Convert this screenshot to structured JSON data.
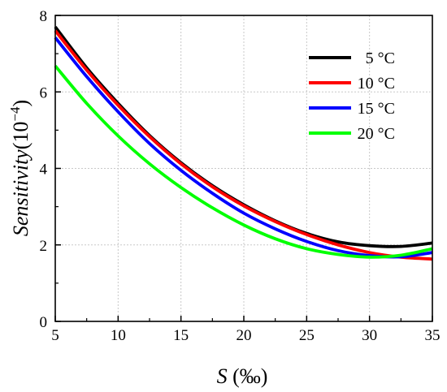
{
  "chart_data": {
    "type": "line",
    "xlabel": {
      "var": "S",
      "unit": " (‰)"
    },
    "ylabel": {
      "var": "Sensitivity",
      "unit": "(10",
      "exp": "−4",
      "close": ")"
    },
    "xlim": [
      5,
      35
    ],
    "ylim": [
      0,
      8
    ],
    "xticks": [
      5,
      10,
      15,
      20,
      25,
      30,
      35
    ],
    "yticks": [
      0,
      2,
      4,
      6,
      8
    ],
    "grid": true,
    "legend_position": "top-right",
    "x": [
      5,
      7.5,
      10,
      12.5,
      15,
      17.5,
      20,
      22.5,
      25,
      27.5,
      30,
      32.5,
      35
    ],
    "series": [
      {
        "name": "5 °C",
        "color": "#000000",
        "values": [
          7.7,
          6.63,
          5.7,
          4.86,
          4.15,
          3.55,
          3.05,
          2.63,
          2.3,
          2.08,
          1.98,
          1.96,
          2.05
        ]
      },
      {
        "name": "10 °C",
        "color": "#ff0000",
        "values": [
          7.6,
          6.57,
          5.65,
          4.83,
          4.12,
          3.52,
          3.02,
          2.61,
          2.27,
          2.0,
          1.8,
          1.68,
          1.63
        ]
      },
      {
        "name": "15 °C",
        "color": "#0000ff",
        "values": [
          7.42,
          6.4,
          5.48,
          4.65,
          3.95,
          3.35,
          2.83,
          2.42,
          2.09,
          1.85,
          1.72,
          1.69,
          1.8
        ]
      },
      {
        "name": "20 °C",
        "color": "#00ff00",
        "values": [
          6.68,
          5.7,
          4.85,
          4.12,
          3.5,
          2.97,
          2.52,
          2.16,
          1.9,
          1.75,
          1.68,
          1.73,
          1.9
        ]
      }
    ]
  }
}
